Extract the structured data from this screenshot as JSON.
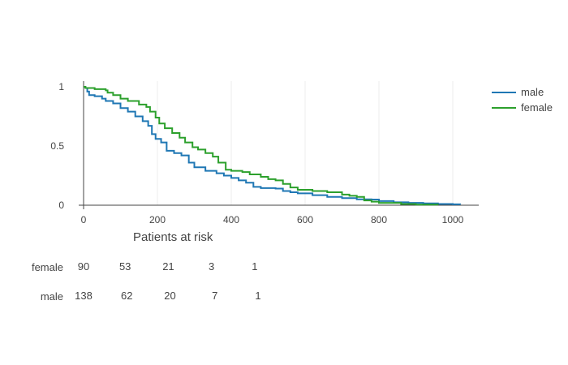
{
  "chart_data": {
    "type": "line",
    "title": "",
    "xlabel": "",
    "ylabel": "",
    "xlim": [
      -5,
      1070
    ],
    "ylim": [
      0,
      1.03
    ],
    "x_ticks": [
      0,
      200,
      400,
      600,
      800,
      1000
    ],
    "y_ticks": [
      0,
      0.5,
      1
    ],
    "x_tick_labels": [
      "0",
      "200",
      "400",
      "600",
      "800",
      "1000"
    ],
    "y_tick_labels": [
      "0",
      "0.5",
      "1"
    ],
    "grid": "vertical",
    "legend_position": "top-right",
    "series": [
      {
        "name": "male",
        "color": "#1f77b4",
        "points": [
          [
            0,
            1.0
          ],
          [
            5,
            0.99
          ],
          [
            10,
            0.96
          ],
          [
            15,
            0.93
          ],
          [
            30,
            0.92
          ],
          [
            50,
            0.9
          ],
          [
            60,
            0.88
          ],
          [
            80,
            0.86
          ],
          [
            100,
            0.82
          ],
          [
            120,
            0.79
          ],
          [
            140,
            0.75
          ],
          [
            160,
            0.71
          ],
          [
            175,
            0.67
          ],
          [
            185,
            0.6
          ],
          [
            195,
            0.56
          ],
          [
            210,
            0.53
          ],
          [
            225,
            0.46
          ],
          [
            245,
            0.44
          ],
          [
            265,
            0.42
          ],
          [
            285,
            0.36
          ],
          [
            300,
            0.32
          ],
          [
            330,
            0.29
          ],
          [
            360,
            0.27
          ],
          [
            380,
            0.25
          ],
          [
            400,
            0.23
          ],
          [
            420,
            0.21
          ],
          [
            440,
            0.19
          ],
          [
            460,
            0.155
          ],
          [
            480,
            0.145
          ],
          [
            520,
            0.14
          ],
          [
            540,
            0.12
          ],
          [
            560,
            0.11
          ],
          [
            580,
            0.1
          ],
          [
            620,
            0.085
          ],
          [
            660,
            0.07
          ],
          [
            700,
            0.06
          ],
          [
            740,
            0.05
          ],
          [
            780,
            0.048
          ],
          [
            800,
            0.035
          ],
          [
            840,
            0.025
          ],
          [
            880,
            0.02
          ],
          [
            920,
            0.015
          ],
          [
            960,
            0.01
          ],
          [
            1000,
            0.008
          ],
          [
            1020,
            0.005
          ]
        ]
      },
      {
        "name": "female",
        "color": "#2ca02c",
        "points": [
          [
            0,
            1.0
          ],
          [
            5,
            0.99
          ],
          [
            30,
            0.98
          ],
          [
            60,
            0.97
          ],
          [
            65,
            0.95
          ],
          [
            80,
            0.93
          ],
          [
            100,
            0.9
          ],
          [
            120,
            0.88
          ],
          [
            150,
            0.85
          ],
          [
            170,
            0.83
          ],
          [
            180,
            0.79
          ],
          [
            195,
            0.74
          ],
          [
            205,
            0.69
          ],
          [
            220,
            0.65
          ],
          [
            240,
            0.61
          ],
          [
            260,
            0.57
          ],
          [
            275,
            0.53
          ],
          [
            295,
            0.49
          ],
          [
            310,
            0.47
          ],
          [
            330,
            0.44
          ],
          [
            350,
            0.41
          ],
          [
            365,
            0.36
          ],
          [
            385,
            0.3
          ],
          [
            400,
            0.29
          ],
          [
            430,
            0.28
          ],
          [
            450,
            0.26
          ],
          [
            480,
            0.24
          ],
          [
            500,
            0.22
          ],
          [
            520,
            0.21
          ],
          [
            540,
            0.18
          ],
          [
            560,
            0.15
          ],
          [
            580,
            0.13
          ],
          [
            620,
            0.12
          ],
          [
            660,
            0.11
          ],
          [
            700,
            0.09
          ],
          [
            720,
            0.08
          ],
          [
            740,
            0.07
          ],
          [
            760,
            0.04
          ],
          [
            780,
            0.03
          ],
          [
            800,
            0.02
          ],
          [
            860,
            0.01
          ],
          [
            900,
            0.005
          ],
          [
            960,
            0.004
          ]
        ]
      }
    ],
    "risk_table": {
      "title": "Patients at risk",
      "rows": [
        {
          "label": "female",
          "counts": [
            {
              "x": 0,
              "label": "90"
            },
            {
              "x": 250,
              "label": "53"
            },
            {
              "x": 510,
              "label": "21"
            },
            {
              "x": 770,
              "label": "3"
            },
            {
              "x": 1030,
              "label": "1"
            }
          ]
        },
        {
          "label": "male",
          "counts": [
            {
              "x": 0,
              "label": "138"
            },
            {
              "x": 260,
              "label": "62"
            },
            {
              "x": 520,
              "label": "20"
            },
            {
              "x": 790,
              "label": "7"
            },
            {
              "x": 1050,
              "label": "1"
            }
          ]
        }
      ]
    }
  }
}
